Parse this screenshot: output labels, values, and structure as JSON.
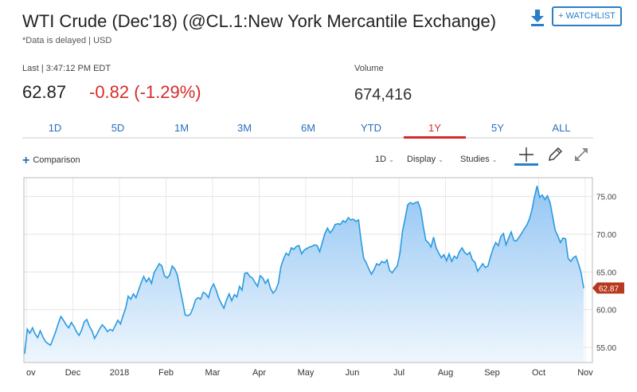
{
  "header": {
    "title": "WTI Crude (Dec'18) (@CL.1:New York Mercantile Exchange)",
    "delayed_note": "*Data is delayed | USD",
    "watchlist_label": "+ WATCHLIST",
    "download_icon": "download-icon"
  },
  "quote": {
    "last_label": "Last | 3:47:12 PM EDT",
    "price": "62.87",
    "change": "-0.82 (-1.29%)",
    "volume_label": "Volume",
    "volume": "674,416",
    "change_color": "#d62b2b"
  },
  "range_tabs": {
    "items": [
      "1D",
      "5D",
      "1M",
      "3M",
      "6M",
      "YTD",
      "1Y",
      "5Y",
      "ALL"
    ],
    "active": "1Y"
  },
  "toolbar": {
    "comparison_label": "Comparison",
    "interval_label": "1D",
    "display_label": "Display",
    "studies_label": "Studies",
    "icons": [
      "crosshair-icon",
      "draw-pencil-icon",
      "expand-icon"
    ]
  },
  "chart_data": {
    "type": "area",
    "x_labels": [
      "ov",
      "Dec",
      "2018",
      "Feb",
      "Mar",
      "Apr",
      "May",
      "Jun",
      "Jul",
      "Aug",
      "Sep",
      "Oct",
      "Nov"
    ],
    "y_ticks": [
      "75.00",
      "70.00",
      "65.00",
      "60.00",
      "55.00"
    ],
    "ylim": [
      53.0,
      77.5
    ],
    "last_value_label": "62.87",
    "grid": true,
    "line_color": "#2a9be0",
    "values": [
      54.2,
      57.4,
      56.9,
      57.6,
      56.8,
      56.3,
      57.2,
      56.4,
      55.8,
      55.5,
      55.3,
      56.2,
      57.1,
      58.2,
      59.1,
      58.6,
      58.0,
      57.6,
      58.3,
      57.8,
      57.1,
      56.6,
      57.3,
      58.4,
      58.7,
      57.8,
      57.2,
      56.2,
      56.8,
      57.5,
      58.0,
      57.6,
      57.1,
      57.4,
      57.2,
      57.9,
      58.6,
      58.1,
      59.2,
      60.2,
      61.8,
      61.4,
      62.1,
      61.6,
      62.6,
      63.6,
      64.4,
      63.7,
      64.2,
      63.5,
      64.9,
      65.5,
      66.1,
      65.8,
      64.5,
      64.2,
      64.6,
      65.8,
      65.4,
      64.6,
      62.8,
      61.2,
      59.3,
      59.2,
      59.4,
      60.2,
      61.3,
      61.6,
      61.4,
      62.3,
      62.1,
      61.6,
      62.8,
      63.4,
      62.6,
      61.5,
      60.8,
      60.2,
      61.3,
      62.1,
      61.2,
      62.0,
      61.7,
      63.1,
      62.6,
      64.8,
      64.9,
      64.4,
      64.2,
      63.6,
      63.1,
      64.5,
      64.2,
      63.5,
      64.0,
      62.8,
      62.2,
      62.6,
      63.5,
      65.7,
      66.7,
      67.5,
      67.2,
      68.2,
      68.0,
      68.4,
      68.5,
      67.4,
      67.9,
      68.1,
      68.3,
      68.4,
      68.6,
      68.5,
      67.7,
      68.9,
      70.1,
      70.8,
      70.2,
      70.6,
      71.3,
      71.4,
      71.3,
      71.8,
      71.6,
      72.2,
      71.9,
      72.0,
      71.7,
      71.9,
      69.1,
      66.8,
      66.2,
      65.4,
      64.7,
      65.3,
      66.1,
      65.9,
      66.4,
      66.2,
      66.6,
      65.2,
      64.9,
      65.4,
      65.8,
      67.5,
      70.4,
      72.1,
      73.9,
      74.2,
      74.0,
      74.2,
      74.3,
      73.3,
      71.1,
      69.2,
      68.9,
      68.3,
      69.6,
      68.2,
      67.5,
      66.9,
      67.3,
      66.5,
      67.4,
      66.4,
      67.1,
      66.8,
      67.7,
      68.2,
      67.6,
      67.3,
      67.6,
      66.6,
      66.3,
      65.1,
      65.6,
      66.1,
      65.6,
      65.8,
      67.0,
      68.1,
      68.9,
      68.5,
      69.7,
      70.1,
      68.6,
      69.5,
      70.3,
      69.2,
      69.1,
      69.6,
      70.1,
      70.7,
      71.2,
      72.0,
      73.2,
      75.0,
      76.4,
      74.9,
      75.2,
      74.6,
      75.1,
      74.2,
      72.4,
      70.5,
      69.8,
      68.9,
      69.5,
      69.4,
      66.8,
      66.4,
      66.9,
      67.1,
      66.1,
      64.9,
      62.87
    ]
  }
}
